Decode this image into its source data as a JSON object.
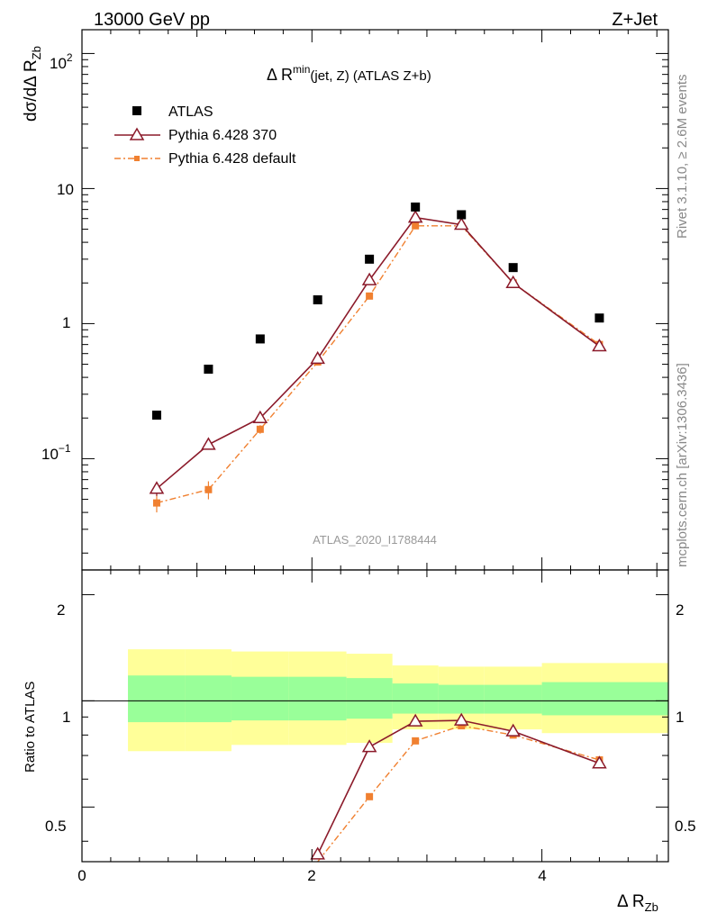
{
  "header": {
    "left": "13000 GeV pp",
    "right": "Z+Jet"
  },
  "side": {
    "rivet": "Rivet 3.1.10, ≥ 2.6M events",
    "mcplots": "mcplots.cern.ch [arXiv:1306.3436]"
  },
  "chart_data": [
    {
      "type": "scatter",
      "title_main": "Δ R",
      "title_sup": "min",
      "title_sub": "(jet, Z) (ATLAS Z+b)",
      "ylabel": "dσ/dΔ R",
      "ylabel_sub": "Zb",
      "yscale": "log",
      "ylim": [
        0.015,
        150
      ],
      "xlim": [
        0,
        5.1
      ],
      "ytick_labels": {
        "major": "10",
        "major_exp": "2",
        "ten": "10",
        "one": "1",
        "tenth": "10",
        "tenth_exp": "−1"
      },
      "watermark": "ATLAS_2020_I1788444",
      "series": [
        {
          "name": "ATLAS",
          "color": "#000000",
          "marker": "square",
          "x": [
            0.65,
            1.1,
            1.55,
            2.05,
            2.5,
            2.9,
            3.3,
            3.75,
            4.5
          ],
          "y": [
            0.21,
            0.46,
            0.77,
            1.5,
            3.0,
            7.3,
            6.4,
            2.6,
            1.1
          ],
          "xerr": [
            0.25,
            0.2,
            0.25,
            0.25,
            0.2,
            0.2,
            0.2,
            0.25,
            0.5
          ]
        },
        {
          "name": "Pythia 6.428 370",
          "color": "#8b1a2a",
          "marker": "triangle",
          "x": [
            0.65,
            1.1,
            1.55,
            2.05,
            2.5,
            2.9,
            3.3,
            3.75,
            4.5
          ],
          "y": [
            0.06,
            0.127,
            0.2,
            0.55,
            2.1,
            6.1,
            5.4,
            2.0,
            0.68
          ],
          "yerr": [
            0.007,
            0.01,
            0.01,
            0.02,
            0.05,
            0.1,
            0.1,
            0.05,
            0.02
          ]
        },
        {
          "name": "Pythia 6.428 default",
          "color": "#f08030",
          "marker": "small-square",
          "x": [
            0.65,
            1.1,
            1.55,
            2.05,
            2.5,
            2.9,
            3.3,
            3.75,
            4.5
          ],
          "y": [
            0.047,
            0.059,
            0.165,
            0.52,
            1.6,
            5.3,
            5.3,
            2.0,
            0.7
          ],
          "yerr": [
            0.007,
            0.009,
            0.012,
            0.02,
            0.05,
            0.1,
            0.1,
            0.05,
            0.02
          ]
        }
      ]
    },
    {
      "type": "line",
      "ylabel": "Ratio to ATLAS",
      "xlabel": "Δ R",
      "xlabel_sub": "Zb",
      "ylim": [
        0.35,
        2.35
      ],
      "xlim": [
        0,
        5.1
      ],
      "xtick_labels": [
        "0",
        "2",
        "4"
      ],
      "ytick_labels": [
        "0.5",
        "1",
        "2"
      ],
      "bands": {
        "edges": [
          0.4,
          0.9,
          1.3,
          1.8,
          2.3,
          2.7,
          3.1,
          3.5,
          4.0,
          5.1
        ],
        "yellow_lo": [
          0.72,
          0.72,
          0.75,
          0.75,
          0.76,
          0.83,
          0.83,
          0.83,
          0.81
        ],
        "yellow_hi": [
          1.4,
          1.4,
          1.38,
          1.38,
          1.36,
          1.26,
          1.25,
          1.25,
          1.28
        ],
        "green_lo": [
          0.87,
          0.87,
          0.88,
          0.88,
          0.89,
          0.92,
          0.92,
          0.92,
          0.91
        ],
        "green_hi": [
          1.18,
          1.18,
          1.17,
          1.17,
          1.16,
          1.12,
          1.11,
          1.11,
          1.13
        ],
        "yellow_color": "#ffff99",
        "green_color": "#99ff99"
      },
      "series": [
        {
          "name": "Pythia 6.428 370",
          "color": "#8b1a2a",
          "x": [
            2.05,
            2.5,
            2.9,
            3.3,
            3.75,
            4.5
          ],
          "y": [
            0.367,
            0.74,
            0.875,
            0.88,
            0.82,
            0.665
          ]
        },
        {
          "name": "Pythia 6.428 default",
          "color": "#f08030",
          "x": [
            2.05,
            2.5,
            2.9,
            3.3,
            3.75,
            4.5
          ],
          "y": [
            0.347,
            0.535,
            0.77,
            0.85,
            0.8,
            0.68
          ]
        }
      ]
    }
  ]
}
